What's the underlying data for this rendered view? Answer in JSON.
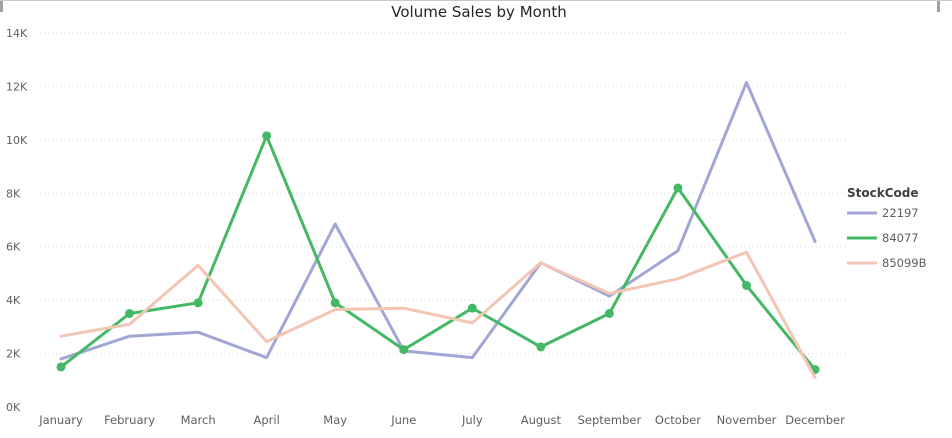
{
  "chart_data": {
    "type": "line",
    "title": "Volume Sales by Month",
    "xlabel": "",
    "ylabel": "",
    "categories": [
      "January",
      "February",
      "March",
      "April",
      "May",
      "June",
      "July",
      "August",
      "September",
      "October",
      "November",
      "December"
    ],
    "y_ticks": [
      "0K",
      "2K",
      "4K",
      "6K",
      "8K",
      "10K",
      "12K",
      "14K"
    ],
    "ylim": [
      0,
      14000
    ],
    "grid": true,
    "legend": {
      "title": "StockCode",
      "placement": "right"
    },
    "series": [
      {
        "name": "22197",
        "color": "#a2a6d4",
        "markers": false,
        "values": [
          1800,
          2650,
          2800,
          1850,
          6850,
          2100,
          1850,
          5400,
          4150,
          5850,
          12150,
          6200
        ]
      },
      {
        "name": "84077",
        "color": "#44b864",
        "markers": true,
        "values": [
          1500,
          3500,
          3900,
          10150,
          3900,
          2150,
          3700,
          2250,
          3500,
          8200,
          4550,
          1400
        ]
      },
      {
        "name": "85099B",
        "color": "#f3c5b3",
        "markers": false,
        "values": [
          2650,
          3100,
          5300,
          2450,
          3650,
          3700,
          3150,
          5400,
          4250,
          4800,
          5800,
          1100
        ]
      }
    ]
  }
}
